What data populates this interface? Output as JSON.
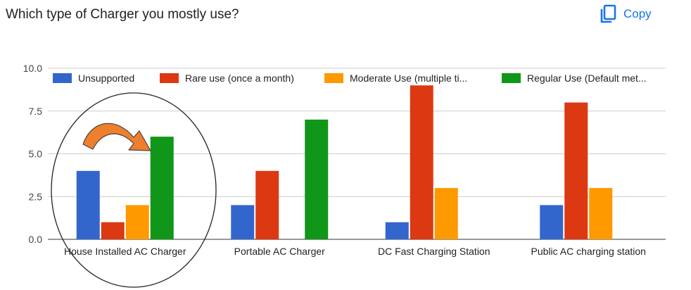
{
  "question": "Which type of Charger you mostly use?",
  "copy_label": "Copy",
  "icons": {
    "copy": "copy-icon"
  },
  "chart_data": {
    "type": "bar",
    "categories": [
      "House Installed AC Charger",
      "Portable AC Charger",
      "DC Fast Charging Station",
      "Public AC charging station"
    ],
    "series": [
      {
        "name": "Unsupported",
        "color": "#3366cc",
        "values": [
          4,
          2,
          1,
          2
        ]
      },
      {
        "name": "Rare use (once a month)",
        "color": "#dc3912",
        "values": [
          1,
          4,
          9,
          8
        ]
      },
      {
        "name": "Moderate Use (multiple ti...",
        "color": "#ff9900",
        "values": [
          2,
          0,
          3,
          3
        ]
      },
      {
        "name": "Regular Use (Default met...",
        "color": "#109618",
        "values": [
          6,
          7,
          0,
          0
        ]
      }
    ],
    "ylim": [
      0,
      10
    ],
    "yticks": [
      "0.0",
      "2.5",
      "5.0",
      "7.5",
      "10.0"
    ],
    "grid": true,
    "legend": "top",
    "annotations": [
      {
        "kind": "ellipse",
        "target": "House Installed AC Charger"
      },
      {
        "kind": "curved-arrow",
        "color": "#ee7f2d",
        "target": "House Installed AC Charger",
        "points_to": "Regular Use (Default met..."
      }
    ]
  }
}
